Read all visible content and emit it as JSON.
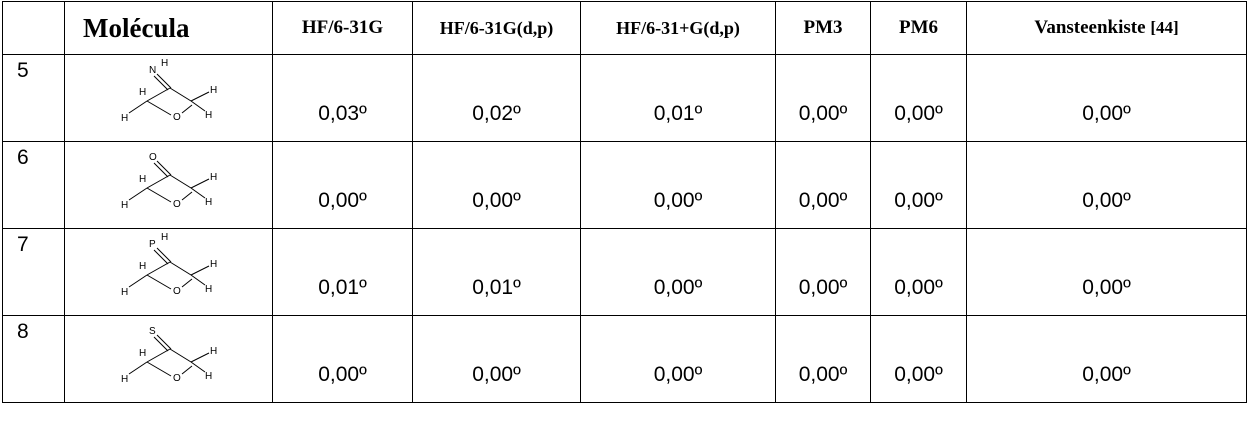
{
  "table": {
    "headers": [
      "",
      "Molécula",
      "HF/6-31G",
      "HF/6-31G(d,p)",
      "HF/6-31+G(d,p)",
      "PM3",
      "PM6",
      "Vansteenkiste",
      "[44]"
    ],
    "rows": [
      {
        "index": "5",
        "molecule": {
          "exo_atom": "N",
          "exo_h": "H",
          "ring_o": "O",
          "h": "H"
        },
        "values": [
          "0,03º",
          "0,02º",
          "0,01º",
          "0,00º",
          "0,00º",
          "0,00º"
        ]
      },
      {
        "index": "6",
        "molecule": {
          "exo_atom": "O",
          "exo_h": "",
          "ring_o": "O",
          "h": "H"
        },
        "values": [
          "0,00º",
          "0,00º",
          "0,00º",
          "0,00º",
          "0,00º",
          "0,00º"
        ]
      },
      {
        "index": "7",
        "molecule": {
          "exo_atom": "P",
          "exo_h": "H",
          "ring_o": "O",
          "h": "H"
        },
        "values": [
          "0,01º",
          "0,01º",
          "0,00º",
          "0,00º",
          "0,00º",
          "0,00º"
        ]
      },
      {
        "index": "8",
        "molecule": {
          "exo_atom": "S",
          "exo_h": "",
          "ring_o": "O",
          "h": "H"
        },
        "values": [
          "0,00º",
          "0,00º",
          "0,00º",
          "0,00º",
          "0,00º",
          "0,00º"
        ]
      }
    ]
  }
}
